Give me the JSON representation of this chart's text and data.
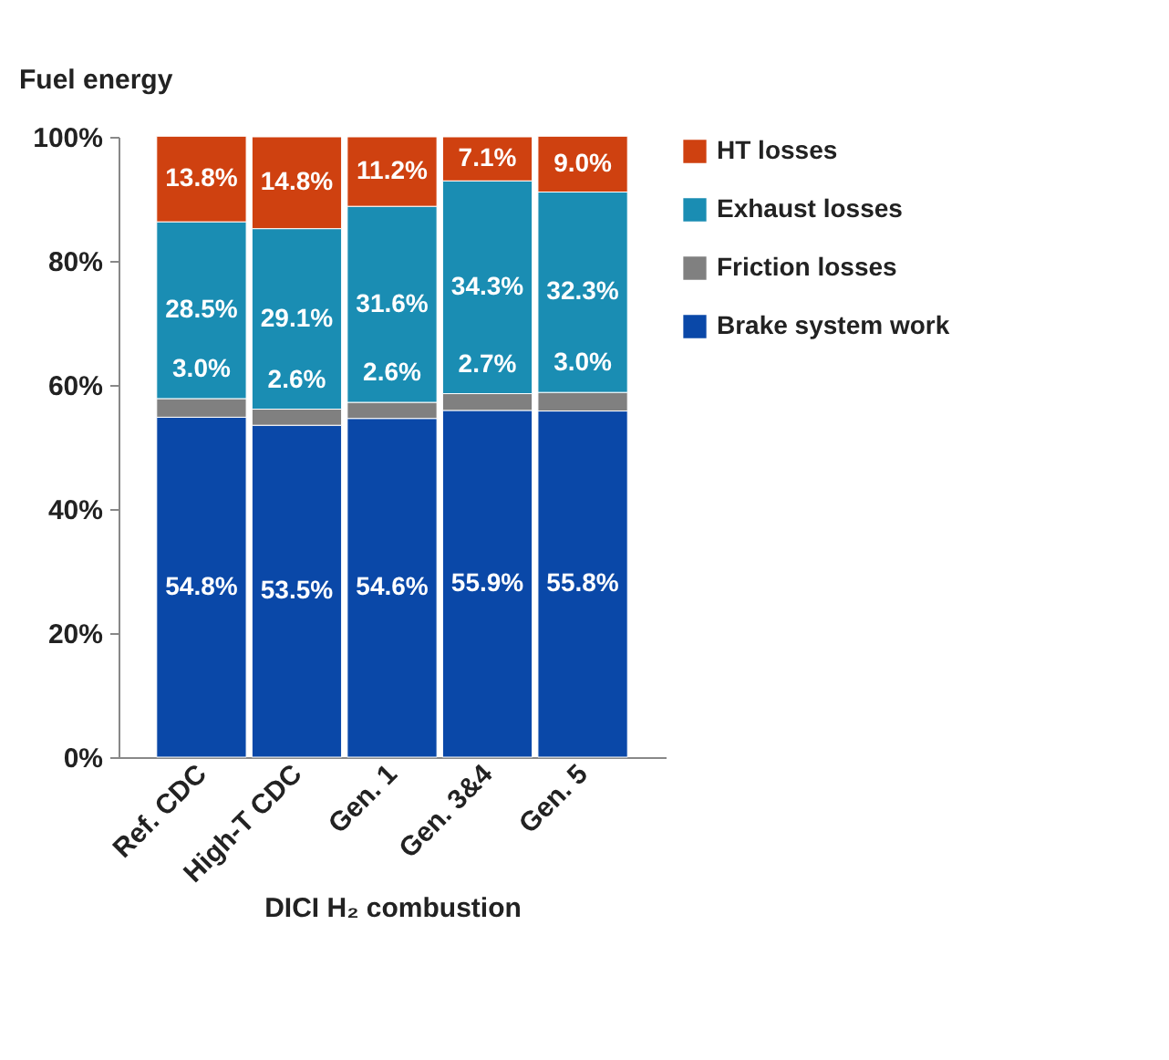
{
  "chart_data": {
    "type": "bar",
    "stacked": true,
    "grid": false,
    "legend": "right",
    "ylabel": "Fuel energy",
    "xlabel": "DICI H₂ combustion",
    "categories": [
      "Ref. CDC",
      "High-T CDC",
      "Gen. 1",
      "Gen. 3&4",
      "Gen. 5"
    ],
    "ylim": [
      0,
      100
    ],
    "yticks": [
      {
        "value": 0,
        "label": "0%"
      },
      {
        "value": 20,
        "label": "20%"
      },
      {
        "value": 40,
        "label": "40%"
      },
      {
        "value": 60,
        "label": "60%"
      },
      {
        "value": 80,
        "label": "80%"
      },
      {
        "value": 100,
        "label": "100%"
      }
    ],
    "series": [
      {
        "name": "Brake system work",
        "color": "#0a48a8",
        "values": [
          54.8,
          53.5,
          54.6,
          55.9,
          55.8
        ],
        "value_labels": [
          "54.8%",
          "53.5%",
          "54.6%",
          "55.9%",
          "55.8%"
        ]
      },
      {
        "name": "Friction losses",
        "color": "#808080",
        "values": [
          3.0,
          2.6,
          2.6,
          2.7,
          3.0
        ],
        "value_labels": [
          "3.0%",
          "2.6%",
          "2.6%",
          "2.7%",
          "3.0%"
        ]
      },
      {
        "name": "Exhaust losses",
        "color": "#1a8db3",
        "values": [
          28.5,
          29.1,
          31.6,
          34.3,
          32.3
        ],
        "value_labels": [
          "28.5%",
          "29.1%",
          "31.6%",
          "34.3%",
          "32.3%"
        ]
      },
      {
        "name": "HT losses",
        "color": "#cf4110",
        "values": [
          13.8,
          14.8,
          11.2,
          7.1,
          9.0
        ],
        "value_labels": [
          "13.8%",
          "14.8%",
          "11.2%",
          "7.1%",
          "9.0%"
        ]
      }
    ]
  }
}
